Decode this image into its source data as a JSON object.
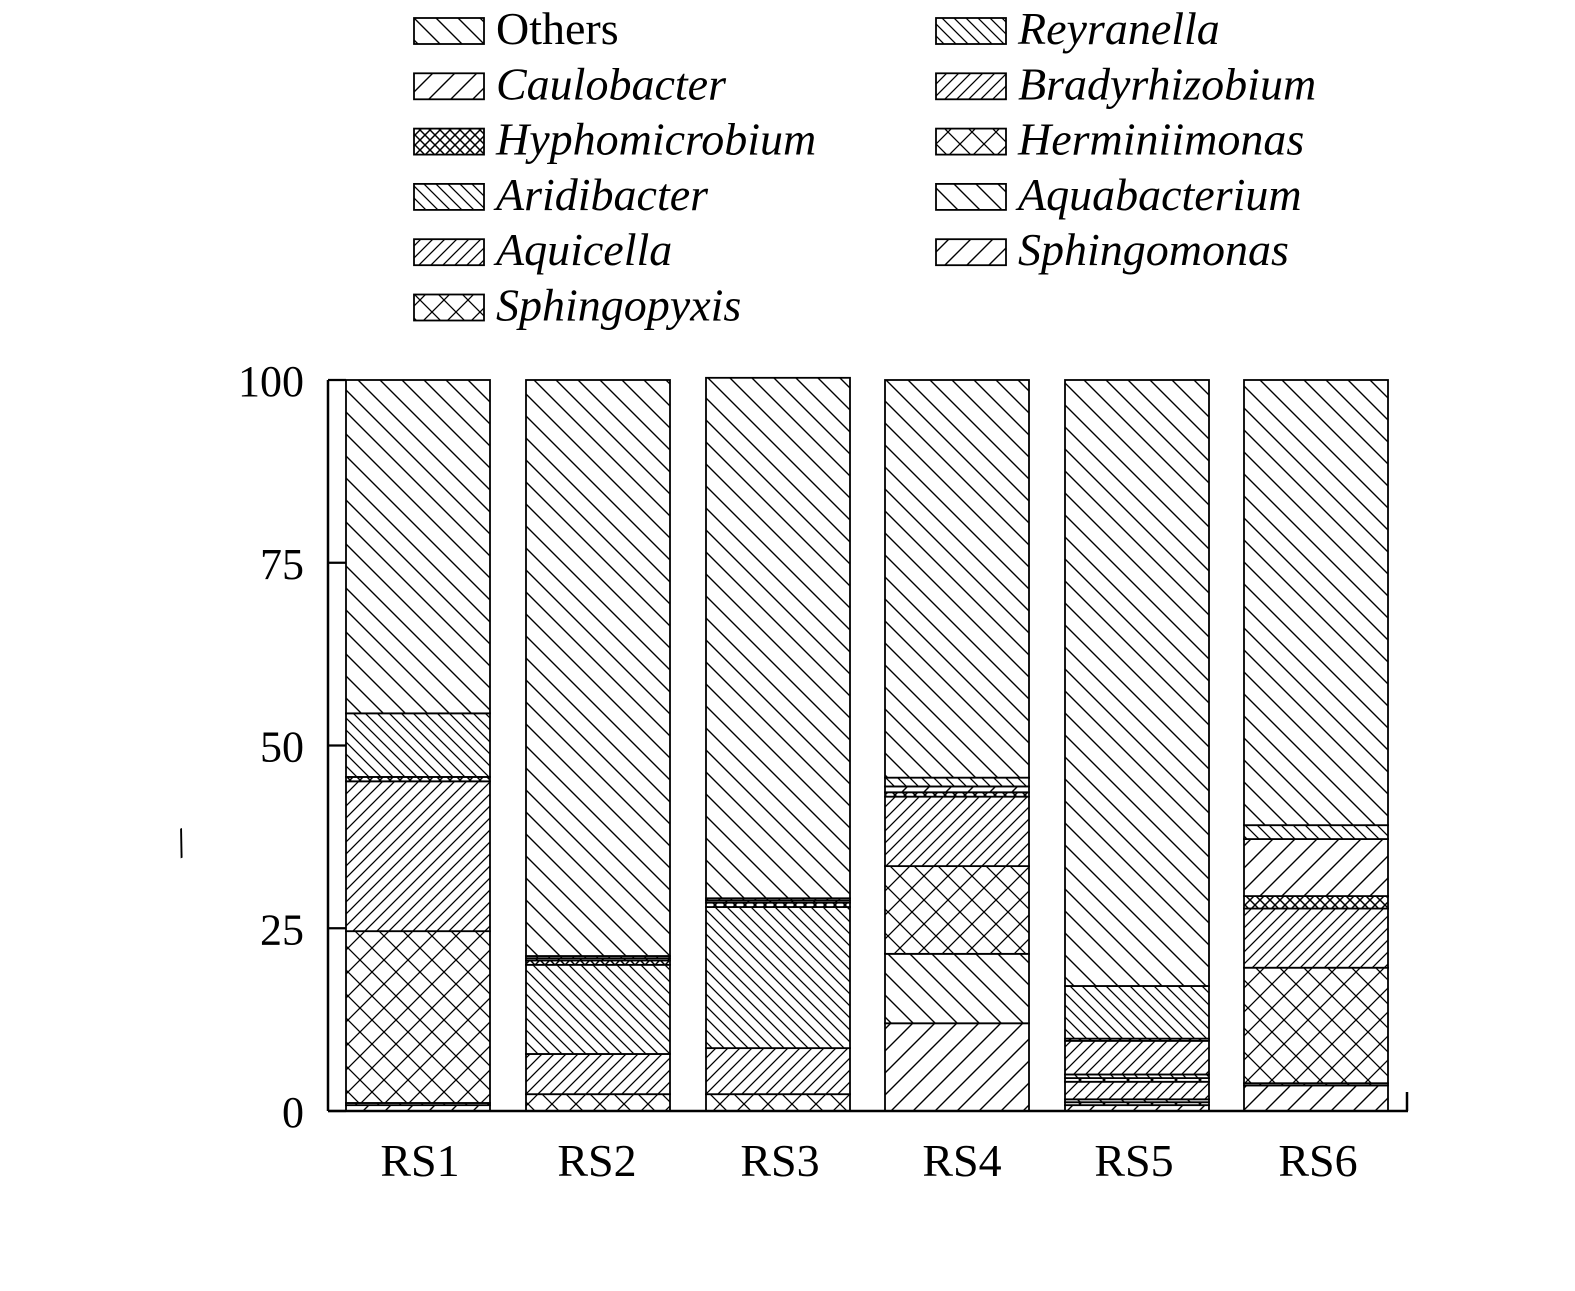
{
  "chart_data": {
    "type": "bar",
    "stacked": true,
    "title": "",
    "xlabel": "",
    "ylabel": "",
    "ylabel_glyph": "/",
    "ylim": [
      0,
      100
    ],
    "yticks": [
      "0",
      "25",
      "50",
      "75",
      "100"
    ],
    "grid": false,
    "legend_position": "top",
    "categories": [
      "RS1",
      "RS2",
      "RS3",
      "RS4",
      "RS5",
      "RS6"
    ],
    "series": [
      {
        "name": "Sphingomonas",
        "pattern": "diag-up-wide",
        "values": [
          0.8,
          0.0,
          0.0,
          12.0,
          0.8,
          3.5
        ]
      },
      {
        "name": "Sphingopyxis",
        "pattern": "cross-wide",
        "values": [
          0.0,
          2.3,
          2.3,
          0.0,
          0.4,
          0.0
        ]
      },
      {
        "name": "Aquabacterium",
        "pattern": "diag-down-wide",
        "values": [
          0.3,
          0.0,
          0.0,
          9.5,
          0.4,
          0.3
        ]
      },
      {
        "name": "Aquicella",
        "pattern": "diag-up-narrow",
        "values": [
          0.0,
          5.5,
          6.3,
          0.0,
          2.4,
          0.0
        ]
      },
      {
        "name": "Herminiimonas",
        "pattern": "cross-wide",
        "values": [
          23.5,
          0.0,
          0.0,
          12.0,
          0.5,
          15.8
        ]
      },
      {
        "name": "Aridibacter",
        "pattern": "diag-down-narrow",
        "values": [
          0.0,
          12.2,
          19.3,
          0.0,
          0.5,
          0.0
        ]
      },
      {
        "name": "Bradyrhizobium",
        "pattern": "diag-up-narrow",
        "values": [
          20.5,
          0.0,
          0.0,
          9.5,
          4.6,
          8.1
        ]
      },
      {
        "name": "Hyphomicrobium",
        "pattern": "cross-dense",
        "values": [
          0.6,
          0.6,
          0.6,
          0.6,
          0.3,
          1.7
        ]
      },
      {
        "name": "Caulobacter",
        "pattern": "diag-up-wide",
        "values": [
          0.0,
          0.3,
          0.3,
          0.8,
          0.0,
          7.8
        ]
      },
      {
        "name": "Reyranella",
        "pattern": "diag-down-narrow",
        "values": [
          8.7,
          0.3,
          0.3,
          1.2,
          7.2,
          1.9
        ]
      },
      {
        "name": "Others",
        "pattern": "diag-down-wide",
        "values": [
          45.6,
          78.8,
          71.2,
          54.4,
          82.9,
          60.9
        ]
      }
    ],
    "legend": [
      {
        "name": "Others",
        "italic": false,
        "pattern": "diag-down-wide"
      },
      {
        "name": "Reyranella",
        "italic": true,
        "pattern": "diag-down-narrow"
      },
      {
        "name": "Caulobacter",
        "italic": true,
        "pattern": "diag-up-wide"
      },
      {
        "name": "Bradyrhizobium",
        "italic": true,
        "pattern": "diag-up-narrow"
      },
      {
        "name": "Hyphomicrobium",
        "italic": true,
        "pattern": "cross-dense"
      },
      {
        "name": "Herminiimonas",
        "italic": true,
        "pattern": "cross-wide"
      },
      {
        "name": "Aridibacter",
        "italic": true,
        "pattern": "diag-down-narrow"
      },
      {
        "name": "Aquabacterium",
        "italic": true,
        "pattern": "diag-down-wide"
      },
      {
        "name": "Aquicella",
        "italic": true,
        "pattern": "diag-up-narrow"
      },
      {
        "name": "Sphingomonas",
        "italic": true,
        "pattern": "diag-up-wide"
      },
      {
        "name": "Sphingopyxis",
        "italic": true,
        "pattern": "cross-wide"
      }
    ]
  }
}
